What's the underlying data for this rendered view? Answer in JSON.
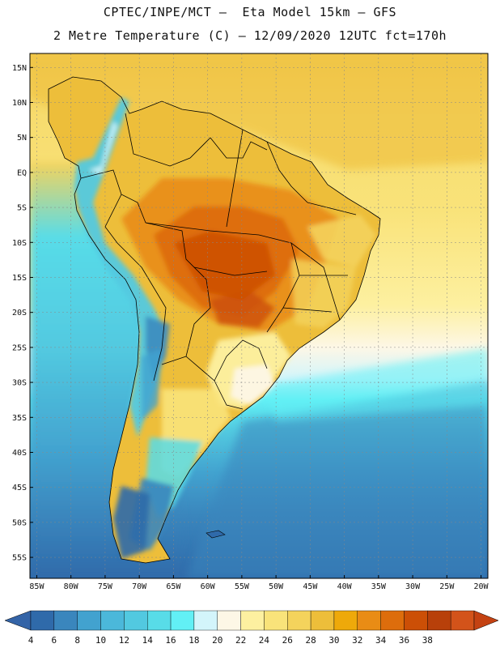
{
  "title": {
    "line1": "CPTEC/INPE/MCT –  Eta Model 15km – GFS",
    "line2": "2 Metre Temperature (C) – 12/09/2020 12UTC fct=170h"
  },
  "map": {
    "lat_labels": [
      "15N",
      "10N",
      "5N",
      "EQ",
      "5S",
      "10S",
      "15S",
      "20S",
      "25S",
      "30S",
      "35S",
      "40S",
      "45S",
      "50S",
      "55S"
    ],
    "lon_labels": [
      "85W",
      "80W",
      "75W",
      "70W",
      "65W",
      "60W",
      "55W",
      "50W",
      "45W",
      "40W",
      "35W",
      "30W",
      "25W",
      "20W"
    ],
    "bounds": {
      "lon_min": -86,
      "lon_max": -19,
      "lat_min": -58,
      "lat_max": 17
    }
  },
  "colorbar": {
    "labels": [
      "4",
      "6",
      "8",
      "10",
      "12",
      "14",
      "16",
      "18",
      "20",
      "22",
      "24",
      "26",
      "28",
      "30",
      "32",
      "34",
      "36",
      "38"
    ],
    "colors": [
      "#2f6aaa",
      "#3a86bd",
      "#42a2cf",
      "#4bb8da",
      "#52c9e0",
      "#58dce8",
      "#62f0f5",
      "#d3f5fb",
      "#fdf7e6",
      "#fdf0a0",
      "#f9e37a",
      "#f4d35c",
      "#edbe3a",
      "#eea90a",
      "#e98c15",
      "#dd6d0c",
      "#cc4f06",
      "#b8400a",
      "#d3531a"
    ],
    "low_arrow_color": "#3464a7",
    "high_arrow_color": "#c44212"
  }
}
